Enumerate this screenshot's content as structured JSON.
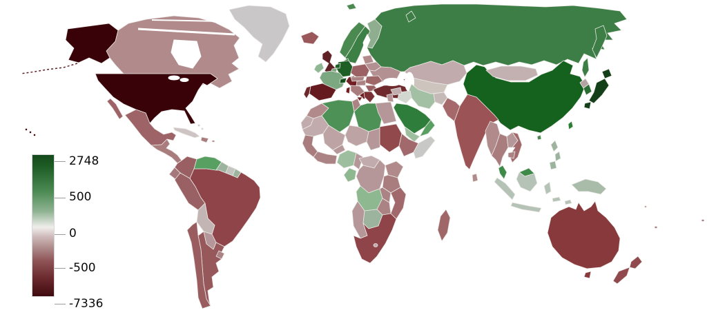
{
  "map": {
    "description": "World choropleth map; green shades = positive balance, red/brown shades = negative balance, gray = no data",
    "ocean_color": "#ffffff",
    "border_color": "#eceae7",
    "region_colors": {
      "usa": "#380208",
      "hawaii": "#380208",
      "aleutians": "#5e2226",
      "canada": "#b18a8c",
      "greenland": "#c9c7c7",
      "bahamas": "#c9c7c7",
      "mexico": "#9e6366",
      "central_america": "#a97c7e",
      "cuba": "#cfc4c4",
      "hispaniola": "#a97c7e",
      "puerto_rico": "#a97c7e",
      "venezuela": "#57a061",
      "colombia": "#9a5f62",
      "guyana": "#9cb49d",
      "suriname": "#c4c4c0",
      "fr_guiana": "#9cb49d",
      "ecuador": "#a5797b",
      "peru": "#9a6164",
      "brazil": "#8e4448",
      "bolivia": "#c4b5b5",
      "paraguay": "#b59799",
      "uruguay": "#ab8385",
      "chile": "#995d5f",
      "argentina": "#96585b",
      "iceland": "#9b585b",
      "uk": "#5e2226",
      "ireland": "#8fb794",
      "norway": "#4a8a51",
      "sweden": "#3d8046",
      "finland": "#8fae90",
      "denmark": "#2f7338",
      "germany": "#1d5f25",
      "netherlands": "#1d5f25",
      "belgium": "#7ca881",
      "france": "#7ca881",
      "switzerland": "#14501b",
      "austria": "#4a8a51",
      "poland": "#9c6164",
      "czech_slovakia": "#ab8385",
      "hungary": "#ab8385",
      "balkans": "#a97c7e",
      "greece": "#7a3135",
      "romania": "#a06769",
      "bulgaria": "#9a5f62",
      "ukraine": "#b39092",
      "belarus": "#b39092",
      "baltics": "#b18a8c",
      "spain": "#641a1f",
      "portugal": "#6e272b",
      "italy": "#701f24",
      "turkey": "#6f2a2e",
      "caucasus": "#8f4a4c",
      "russia": "#3c7e45",
      "svalbard": "#4a8a51",
      "novaya_zemlya": "#3c7e45",
      "sakhalin": "#3c7e45",
      "kazakhstan": "#c2abac",
      "central_asia": "#ccc4bd",
      "mongolia": "#c3b1b2",
      "china": "#15621f",
      "hainan": "#4a8a51",
      "north_korea": "#b5a3a3",
      "south_korea": "#2a6e33",
      "japan": "#133f19",
      "taiwan": "#2a7d35",
      "india": "#9b5356",
      "sri_lanka": "#b18a8c",
      "pakistan": "#a5686b",
      "afghanistan": "#c6bab8",
      "iran": "#a3bfa4",
      "iraq": "#d2d8d0",
      "syria": "#c0aeae",
      "israel_jordan": "#b59799",
      "saudi_arabia": "#2f7d3a",
      "yemen": "#9dbf9f",
      "oman": "#57a061",
      "egypt": "#b59799",
      "sudan": "#91494c",
      "ethiopia": "#a1696b",
      "somalia": "#c8c8c6",
      "libya": "#4e9156",
      "algeria": "#4e9156",
      "tunisia": "#ab8385",
      "morocco": "#b18a8c",
      "western_sahara": "#c2abac",
      "mauritania": "#c2abac",
      "mali": "#bda3a4",
      "niger": "#bda3a4",
      "chad": "#b59799",
      "west_africa": "#a97c7e",
      "gulf_guinea": "#ab8385",
      "burkina": "#b59799",
      "nigeria": "#9dbf9f",
      "cameroon": "#b59799",
      "car": "#c2abac",
      "drc": "#b59799",
      "congo_gabon": "#8db890",
      "east_africa": "#b18a8c",
      "tanzania": "#a97c7e",
      "angola": "#8db890",
      "zambia": "#ab8385",
      "mozambique": "#a1696b",
      "zimbabwe": "#ab8385",
      "namibia": "#b59799",
      "botswana": "#9cb49d",
      "south_africa": "#8e4448",
      "lesotho": "#c2abac",
      "madagascar": "#a06769",
      "myanmar": "#b18a8c",
      "thailand": "#a97c7e",
      "laos": "#b59799",
      "vietnam": "#a1696b",
      "cambodia": "#ab8385",
      "malaysia": "#3d8a49",
      "indonesia": "#b5c3b6",
      "philippines": "#9cb49d",
      "papua_new_guinea": "#a9bcaa",
      "australia": "#88393c",
      "new_zealand": "#90494c",
      "pacific_islands": "#a97c7e"
    }
  },
  "legend": {
    "ticks": [
      {
        "label": "2748",
        "pct": 0
      },
      {
        "label": "500",
        "pct": 25.6
      },
      {
        "label": "0",
        "pct": 51.2
      },
      {
        "label": "-500",
        "pct": 74.9
      },
      {
        "label": "-7336",
        "pct": 100
      }
    ],
    "gradient_stops": [
      {
        "color": "#164a1c",
        "pct": 0
      },
      {
        "color": "#1d5c24",
        "pct": 8
      },
      {
        "color": "#4b8a52",
        "pct": 25.6
      },
      {
        "color": "#8fb392",
        "pct": 40
      },
      {
        "color": "#f0eeec",
        "pct": 51.2
      },
      {
        "color": "#cdb9b8",
        "pct": 58
      },
      {
        "color": "#b08f8f",
        "pct": 65
      },
      {
        "color": "#8f5456",
        "pct": 74.9
      },
      {
        "color": "#6b2a2e",
        "pct": 87
      },
      {
        "color": "#4a1216",
        "pct": 97
      },
      {
        "color": "#3c0a0e",
        "pct": 100
      }
    ]
  }
}
